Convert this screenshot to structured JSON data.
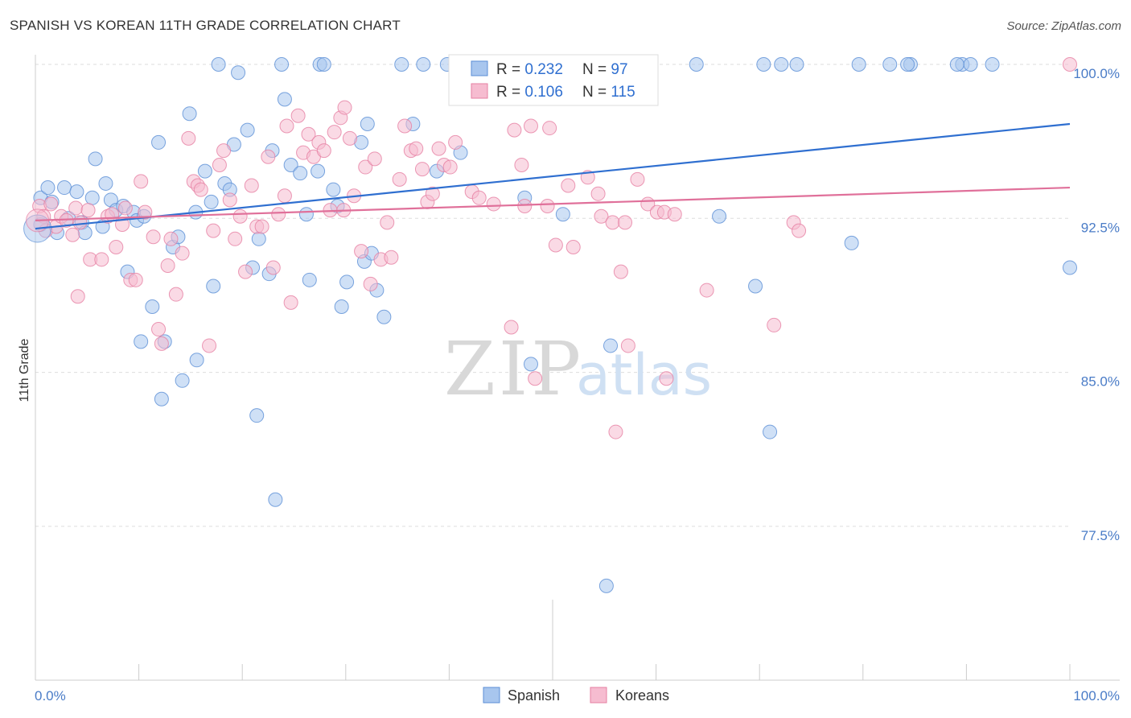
{
  "header": {
    "title": "SPANISH VS KOREAN 11TH GRADE CORRELATION CHART",
    "source": "Source: ZipAtlas.com"
  },
  "watermark": {
    "zip": "ZIP",
    "atlas": "atlas"
  },
  "colors": {
    "blue_fill": "#a8c6ee",
    "blue_stroke": "#5b8fd6",
    "blue_line": "#2f6fd0",
    "pink_fill": "#f6bcd0",
    "pink_stroke": "#e67fa2",
    "pink_line": "#e0709a",
    "tick_text": "#4a7cc7",
    "grid": "#dddddd"
  },
  "chart_data": {
    "type": "scatter",
    "title": "SPANISH VS KOREAN 11TH GRADE CORRELATION CHART",
    "ylabel": "11th Grade",
    "xlabel": "",
    "xlim": [
      0,
      100
    ],
    "ylim": [
      71.0,
      101.5
    ],
    "x_ticks": [
      "0.0%",
      "100.0%"
    ],
    "y_ticks": [
      {
        "value": 100.0,
        "label": "100.0%"
      },
      {
        "value": 92.5,
        "label": "92.5%"
      },
      {
        "value": 85.0,
        "label": "85.0%"
      },
      {
        "value": 77.5,
        "label": "77.5%"
      }
    ],
    "grid": true,
    "legend_position": "top-center",
    "legend": [
      {
        "series": "Spanish",
        "r_label": "R = ",
        "r_value": "0.232",
        "n_label": "N = ",
        "n_value": "97"
      },
      {
        "series": "Koreans",
        "r_label": "R = ",
        "r_value": "0.106",
        "n_label": "N = ",
        "n_value": "115"
      }
    ],
    "series": [
      {
        "name": "Spanish",
        "color": "#a8c6ee",
        "trend": {
          "x": [
            0,
            100
          ],
          "y": [
            92.0,
            97.1
          ]
        },
        "points": [
          [
            0.5,
            93.5
          ],
          [
            0.5,
            92.2
          ],
          [
            1.2,
            94.0
          ],
          [
            1.6,
            93.3
          ],
          [
            2.1,
            91.8
          ],
          [
            2.8,
            94.0
          ],
          [
            3.2,
            92.5
          ],
          [
            4.0,
            93.8
          ],
          [
            4.5,
            92.3
          ],
          [
            4.8,
            91.8
          ],
          [
            5.5,
            93.5
          ],
          [
            5.8,
            95.4
          ],
          [
            6.5,
            92.1
          ],
          [
            6.8,
            94.2
          ],
          [
            7.3,
            93.4
          ],
          [
            7.8,
            92.9
          ],
          [
            8.5,
            93.1
          ],
          [
            8.9,
            89.9
          ],
          [
            9.5,
            92.8
          ],
          [
            9.8,
            92.4
          ],
          [
            10.5,
            92.6
          ],
          [
            10.2,
            86.5
          ],
          [
            11.3,
            88.2
          ],
          [
            11.9,
            96.2
          ],
          [
            12.5,
            86.5
          ],
          [
            12.2,
            83.7
          ],
          [
            13.3,
            91.1
          ],
          [
            13.8,
            91.6
          ],
          [
            14.2,
            84.6
          ],
          [
            14.9,
            97.6
          ],
          [
            15.5,
            92.8
          ],
          [
            15.6,
            85.6
          ],
          [
            16.4,
            94.8
          ],
          [
            17.0,
            93.3
          ],
          [
            17.2,
            89.2
          ],
          [
            17.7,
            100.0
          ],
          [
            18.3,
            94.2
          ],
          [
            18.8,
            93.9
          ],
          [
            19.2,
            96.1
          ],
          [
            19.6,
            99.6
          ],
          [
            20.5,
            96.8
          ],
          [
            21.0,
            90.1
          ],
          [
            21.6,
            91.5
          ],
          [
            21.4,
            82.9
          ],
          [
            22.6,
            89.8
          ],
          [
            22.9,
            95.8
          ],
          [
            23.2,
            78.8
          ],
          [
            23.8,
            100.0
          ],
          [
            24.1,
            98.3
          ],
          [
            24.7,
            95.1
          ],
          [
            25.6,
            94.7
          ],
          [
            26.2,
            92.7
          ],
          [
            26.5,
            89.5
          ],
          [
            27.3,
            94.8
          ],
          [
            27.5,
            100.0
          ],
          [
            27.9,
            100.0
          ],
          [
            28.8,
            93.9
          ],
          [
            29.2,
            93.1
          ],
          [
            29.6,
            88.2
          ],
          [
            30.1,
            89.4
          ],
          [
            31.8,
            90.4
          ],
          [
            32.1,
            97.1
          ],
          [
            32.5,
            90.8
          ],
          [
            33.0,
            89.0
          ],
          [
            31.5,
            96.2
          ],
          [
            33.7,
            87.7
          ],
          [
            35.4,
            100.0
          ],
          [
            36.5,
            97.1
          ],
          [
            37.5,
            100.0
          ],
          [
            38.8,
            94.8
          ],
          [
            39.8,
            100.0
          ],
          [
            41.1,
            95.7
          ],
          [
            45.5,
            99.9
          ],
          [
            47.3,
            93.5
          ],
          [
            47.9,
            85.4
          ],
          [
            51.0,
            92.7
          ],
          [
            53.5,
            100.0
          ],
          [
            54.2,
            100.0
          ],
          [
            55.6,
            86.3
          ],
          [
            55.2,
            74.6
          ],
          [
            63.9,
            100.0
          ],
          [
            66.1,
            92.6
          ],
          [
            69.6,
            89.2
          ],
          [
            70.4,
            100.0
          ],
          [
            71.0,
            82.1
          ],
          [
            72.1,
            100.0
          ],
          [
            73.6,
            100.0
          ],
          [
            78.9,
            91.3
          ],
          [
            79.6,
            100.0
          ],
          [
            82.6,
            100.0
          ],
          [
            84.6,
            100.0
          ],
          [
            84.3,
            100.0
          ],
          [
            89.6,
            100.0
          ],
          [
            89.1,
            100.0
          ],
          [
            90.4,
            100.0
          ],
          [
            92.5,
            100.0
          ],
          [
            100.0,
            90.1
          ]
        ]
      },
      {
        "name": "Koreans",
        "color": "#f6bcd0",
        "trend": {
          "x": [
            0,
            100
          ],
          "y": [
            92.4,
            94.0
          ]
        },
        "points": [
          [
            0.4,
            93.1
          ],
          [
            0.8,
            92.6
          ],
          [
            1.0,
            91.9
          ],
          [
            1.5,
            93.2
          ],
          [
            2.0,
            92.1
          ],
          [
            2.5,
            92.6
          ],
          [
            3.0,
            92.4
          ],
          [
            3.6,
            91.7
          ],
          [
            3.9,
            93.0
          ],
          [
            4.3,
            92.3
          ],
          [
            5.1,
            92.9
          ],
          [
            4.1,
            88.7
          ],
          [
            5.3,
            90.5
          ],
          [
            6.4,
            90.5
          ],
          [
            7.0,
            92.6
          ],
          [
            7.4,
            92.7
          ],
          [
            7.8,
            91.1
          ],
          [
            8.4,
            92.2
          ],
          [
            8.7,
            93.0
          ],
          [
            9.2,
            89.5
          ],
          [
            9.7,
            89.5
          ],
          [
            10.2,
            94.3
          ],
          [
            10.6,
            92.8
          ],
          [
            11.4,
            91.6
          ],
          [
            11.9,
            87.1
          ],
          [
            12.2,
            86.4
          ],
          [
            12.8,
            90.2
          ],
          [
            13.1,
            91.5
          ],
          [
            13.6,
            88.8
          ],
          [
            14.2,
            90.8
          ],
          [
            14.8,
            96.4
          ],
          [
            15.3,
            94.3
          ],
          [
            15.7,
            94.1
          ],
          [
            16.0,
            93.9
          ],
          [
            16.8,
            86.3
          ],
          [
            17.2,
            91.9
          ],
          [
            17.8,
            95.1
          ],
          [
            18.2,
            95.8
          ],
          [
            18.8,
            93.4
          ],
          [
            19.3,
            91.5
          ],
          [
            19.8,
            92.6
          ],
          [
            20.3,
            89.9
          ],
          [
            20.9,
            94.1
          ],
          [
            21.4,
            92.1
          ],
          [
            21.9,
            92.1
          ],
          [
            22.5,
            95.5
          ],
          [
            23.0,
            90.1
          ],
          [
            23.5,
            92.7
          ],
          [
            24.1,
            93.6
          ],
          [
            24.3,
            97.0
          ],
          [
            24.7,
            88.4
          ],
          [
            25.4,
            97.5
          ],
          [
            25.9,
            95.7
          ],
          [
            26.4,
            96.6
          ],
          [
            26.9,
            95.5
          ],
          [
            27.4,
            96.2
          ],
          [
            27.9,
            95.8
          ],
          [
            28.5,
            92.9
          ],
          [
            28.9,
            96.7
          ],
          [
            29.5,
            97.4
          ],
          [
            29.9,
            97.9
          ],
          [
            30.4,
            96.4
          ],
          [
            30.8,
            93.6
          ],
          [
            31.5,
            90.9
          ],
          [
            31.9,
            95.0
          ],
          [
            32.4,
            89.3
          ],
          [
            32.8,
            95.4
          ],
          [
            33.4,
            90.5
          ],
          [
            34.0,
            92.3
          ],
          [
            34.4,
            90.6
          ],
          [
            35.2,
            94.4
          ],
          [
            35.7,
            97.0
          ],
          [
            36.3,
            95.8
          ],
          [
            36.8,
            95.9
          ],
          [
            37.4,
            94.9
          ],
          [
            37.9,
            93.3
          ],
          [
            38.4,
            93.7
          ],
          [
            39.0,
            95.9
          ],
          [
            39.5,
            95.1
          ],
          [
            40.1,
            95.0
          ],
          [
            40.6,
            96.2
          ],
          [
            42.2,
            93.8
          ],
          [
            42.9,
            93.5
          ],
          [
            44.3,
            93.2
          ],
          [
            46.0,
            87.2
          ],
          [
            46.3,
            96.8
          ],
          [
            47.0,
            95.1
          ],
          [
            47.3,
            93.1
          ],
          [
            47.9,
            97.0
          ],
          [
            48.3,
            84.7
          ],
          [
            49.5,
            93.1
          ],
          [
            49.7,
            96.9
          ],
          [
            50.3,
            91.2
          ],
          [
            51.5,
            94.1
          ],
          [
            52.0,
            91.1
          ],
          [
            53.4,
            94.5
          ],
          [
            54.4,
            93.7
          ],
          [
            54.7,
            92.6
          ],
          [
            55.8,
            92.3
          ],
          [
            57.0,
            92.3
          ],
          [
            58.2,
            94.4
          ],
          [
            59.2,
            93.2
          ],
          [
            60.1,
            92.8
          ],
          [
            60.8,
            92.8
          ],
          [
            61.0,
            84.7
          ],
          [
            61.8,
            92.7
          ],
          [
            56.1,
            82.1
          ],
          [
            57.3,
            86.3
          ],
          [
            64.9,
            89.0
          ],
          [
            71.4,
            87.3
          ],
          [
            73.3,
            92.3
          ],
          [
            73.8,
            91.9
          ],
          [
            100.0,
            100.0
          ],
          [
            56.6,
            89.9
          ],
          [
            29.8,
            92.9
          ]
        ]
      }
    ]
  },
  "bottom_legend": [
    {
      "label": "Spanish"
    },
    {
      "label": "Koreans"
    }
  ]
}
